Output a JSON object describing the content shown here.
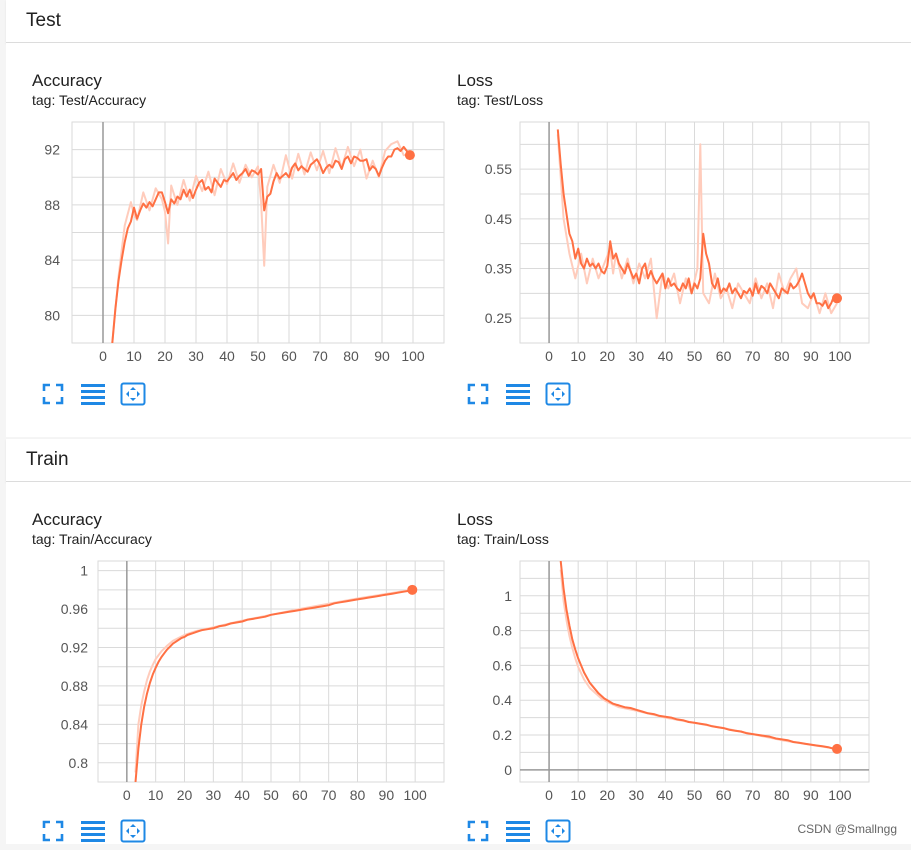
{
  "sections": {
    "test": {
      "title": "Test"
    },
    "train": {
      "title": "Train"
    }
  },
  "colors": {
    "accent": "#ff7043",
    "raw": "#ffccbc",
    "grid": "#dadada",
    "axis": "#999999",
    "button": "#1e88e5"
  },
  "icons": [
    "fullscreen-icon",
    "toggle-lines-icon",
    "fit-domain-icon"
  ],
  "watermark": "CSDN @Smallngg",
  "chart_data": [
    {
      "id": "test_acc",
      "type": "line",
      "title": "Accuracy",
      "tag": "tag: Test/Accuracy",
      "xlim": [
        -10,
        110
      ],
      "ylim": [
        78,
        94
      ],
      "xticks": [
        0,
        10,
        20,
        30,
        40,
        50,
        60,
        70,
        80,
        90,
        100
      ],
      "yticks": [
        80,
        84,
        88,
        92
      ],
      "series": [
        {
          "x": [
            3,
            4,
            5,
            6,
            7,
            8,
            9,
            10,
            11,
            12,
            13,
            14,
            15,
            16,
            17,
            18,
            19,
            20,
            21,
            22,
            23,
            24,
            25,
            26,
            27,
            28,
            29,
            30,
            31,
            32,
            33,
            34,
            35,
            36,
            37,
            38,
            39,
            40,
            41,
            42,
            43,
            44,
            45,
            46,
            47,
            48,
            49,
            50,
            51,
            52,
            53,
            54,
            55,
            56,
            57,
            58,
            59,
            60,
            61,
            62,
            63,
            64,
            65,
            66,
            67,
            68,
            69,
            70,
            71,
            72,
            73,
            74,
            75,
            76,
            77,
            78,
            79,
            80,
            81,
            82,
            83,
            84,
            85,
            86,
            87,
            88,
            89,
            90,
            91,
            92,
            93,
            94,
            95,
            96,
            97,
            98,
            99
          ],
          "y": [
            78.0,
            80.5,
            82.5,
            84.0,
            85.3,
            86.3,
            86.8,
            87.8,
            87.0,
            87.6,
            88.1,
            87.8,
            88.2,
            87.9,
            88.4,
            88.9,
            88.9,
            88.2,
            87.4,
            88.4,
            88.1,
            88.6,
            88.4,
            89.1,
            88.6,
            89.1,
            88.5,
            89.1,
            89.6,
            89.8,
            89.1,
            89.3,
            88.9,
            89.9,
            89.6,
            89.3,
            89.8,
            89.7,
            90.0,
            90.3,
            89.8,
            90.1,
            90.3,
            90.6,
            90.1,
            90.5,
            90.4,
            90.2,
            90.6,
            87.6,
            88.6,
            88.8,
            89.7,
            90.3,
            89.9,
            90.1,
            90.3,
            90.0,
            90.7,
            91.0,
            90.5,
            90.8,
            90.6,
            90.4,
            90.9,
            91.1,
            91.3,
            90.9,
            90.3,
            90.7,
            90.9,
            90.7,
            91.2,
            91.1,
            90.6,
            91.3,
            91.5,
            91.0,
            91.5,
            91.4,
            91.2,
            91.2,
            91.3,
            90.5,
            90.8,
            90.6,
            90.1,
            90.7,
            91.2,
            91.5,
            91.5,
            92.0,
            92.1,
            91.9,
            92.2,
            91.9,
            91.6
          ]
        }
      ],
      "raw": {
        "x": [
          3,
          5,
          7,
          9,
          10,
          11,
          13,
          15,
          17,
          19,
          20,
          21,
          22,
          24,
          26,
          28,
          30,
          32,
          34,
          36,
          38,
          40,
          42,
          44,
          46,
          48,
          50,
          51,
          52,
          53,
          55,
          57,
          59,
          61,
          63,
          65,
          67,
          69,
          71,
          73,
          75,
          77,
          79,
          81,
          83,
          85,
          87,
          89,
          91,
          93,
          95,
          97,
          99
        ],
        "y": [
          78.0,
          82.8,
          86.5,
          88.2,
          87.3,
          86.9,
          88.9,
          87.6,
          89.2,
          88.4,
          87.5,
          85.2,
          89.4,
          88.0,
          89.8,
          88.3,
          90.1,
          89.0,
          90.4,
          88.7,
          90.6,
          89.5,
          91.0,
          89.6,
          90.9,
          90.0,
          90.8,
          88.2,
          83.6,
          89.3,
          90.9,
          89.6,
          91.6,
          89.9,
          91.7,
          90.2,
          91.8,
          90.5,
          91.9,
          90.3,
          92.1,
          90.7,
          92.2,
          90.8,
          92.0,
          89.9,
          91.2,
          90.0,
          91.9,
          92.4,
          92.6,
          91.6,
          91.7
        ]
      }
    },
    {
      "id": "test_loss",
      "type": "line",
      "title": "Loss",
      "tag": "tag: Test/Loss",
      "xlim": [
        -10,
        110
      ],
      "ylim": [
        0.2,
        0.645
      ],
      "xticks": [
        0,
        10,
        20,
        30,
        40,
        50,
        60,
        70,
        80,
        90,
        100
      ],
      "yticks": [
        0.25,
        0.35,
        0.45,
        0.55
      ],
      "series": [
        {
          "x": [
            3,
            4,
            5,
            6,
            7,
            8,
            9,
            10,
            11,
            12,
            13,
            14,
            15,
            16,
            17,
            18,
            19,
            20,
            21,
            22,
            23,
            24,
            25,
            26,
            27,
            28,
            29,
            30,
            31,
            32,
            33,
            34,
            35,
            36,
            37,
            38,
            39,
            40,
            41,
            42,
            43,
            44,
            45,
            46,
            47,
            48,
            49,
            50,
            51,
            52,
            53,
            54,
            55,
            56,
            57,
            58,
            59,
            60,
            61,
            62,
            63,
            64,
            65,
            66,
            67,
            68,
            69,
            70,
            71,
            72,
            73,
            74,
            75,
            76,
            77,
            78,
            79,
            80,
            81,
            82,
            83,
            84,
            85,
            86,
            87,
            88,
            89,
            90,
            91,
            92,
            93,
            94,
            95,
            96,
            97,
            98,
            99
          ],
          "y": [
            0.63,
            0.56,
            0.5,
            0.46,
            0.42,
            0.405,
            0.37,
            0.39,
            0.36,
            0.35,
            0.37,
            0.355,
            0.36,
            0.35,
            0.36,
            0.345,
            0.34,
            0.355,
            0.405,
            0.37,
            0.38,
            0.36,
            0.35,
            0.34,
            0.36,
            0.345,
            0.33,
            0.34,
            0.32,
            0.35,
            0.36,
            0.33,
            0.345,
            0.33,
            0.32,
            0.33,
            0.34,
            0.31,
            0.33,
            0.315,
            0.32,
            0.31,
            0.305,
            0.32,
            0.31,
            0.33,
            0.3,
            0.32,
            0.31,
            0.33,
            0.42,
            0.38,
            0.36,
            0.32,
            0.31,
            0.33,
            0.3,
            0.31,
            0.305,
            0.32,
            0.3,
            0.31,
            0.3,
            0.29,
            0.305,
            0.3,
            0.31,
            0.295,
            0.32,
            0.3,
            0.315,
            0.31,
            0.3,
            0.32,
            0.31,
            0.3,
            0.29,
            0.31,
            0.305,
            0.3,
            0.32,
            0.31,
            0.315,
            0.325,
            0.34,
            0.32,
            0.3,
            0.29,
            0.3,
            0.28,
            0.28,
            0.275,
            0.285,
            0.27,
            0.28,
            0.295,
            0.29
          ]
        }
      ],
      "raw": {
        "x": [
          3,
          5,
          7,
          9,
          11,
          13,
          15,
          17,
          19,
          21,
          22,
          23,
          25,
          27,
          29,
          31,
          33,
          35,
          37,
          39,
          41,
          43,
          45,
          47,
          49,
          51,
          52,
          53,
          55,
          57,
          59,
          61,
          63,
          65,
          67,
          69,
          71,
          73,
          75,
          77,
          79,
          81,
          83,
          85,
          87,
          89,
          91,
          93,
          95,
          97,
          99
        ],
        "y": [
          0.62,
          0.45,
          0.38,
          0.33,
          0.38,
          0.32,
          0.37,
          0.33,
          0.36,
          0.39,
          0.34,
          0.38,
          0.33,
          0.37,
          0.32,
          0.36,
          0.33,
          0.37,
          0.25,
          0.34,
          0.31,
          0.34,
          0.28,
          0.33,
          0.3,
          0.35,
          0.6,
          0.3,
          0.28,
          0.34,
          0.29,
          0.31,
          0.27,
          0.32,
          0.3,
          0.28,
          0.33,
          0.29,
          0.32,
          0.27,
          0.34,
          0.3,
          0.33,
          0.35,
          0.28,
          0.27,
          0.3,
          0.26,
          0.3,
          0.26,
          0.28
        ]
      }
    },
    {
      "id": "train_acc",
      "type": "line",
      "title": "Accuracy",
      "tag": "tag: Train/Accuracy",
      "xlim": [
        -10,
        110
      ],
      "ylim": [
        0.78,
        1.01
      ],
      "xticks": [
        0,
        10,
        20,
        30,
        40,
        50,
        60,
        70,
        80,
        90,
        100
      ],
      "yticks": [
        0.8,
        0.84,
        0.88,
        0.92,
        0.96,
        1
      ],
      "series": [
        {
          "x": [
            3,
            4,
            5,
            6,
            7,
            8,
            9,
            10,
            11,
            12,
            13,
            14,
            15,
            16,
            17,
            18,
            19,
            20,
            21,
            22,
            23,
            24,
            25,
            26,
            28,
            30,
            32,
            34,
            36,
            38,
            40,
            42,
            44,
            46,
            48,
            50,
            52,
            54,
            56,
            58,
            60,
            62,
            64,
            66,
            68,
            70,
            72,
            74,
            76,
            78,
            80,
            82,
            84,
            86,
            88,
            90,
            92,
            94,
            96,
            98,
            99
          ],
          "y": [
            0.78,
            0.815,
            0.84,
            0.858,
            0.872,
            0.883,
            0.892,
            0.899,
            0.905,
            0.91,
            0.914,
            0.918,
            0.921,
            0.924,
            0.926,
            0.928,
            0.93,
            0.931,
            0.933,
            0.934,
            0.935,
            0.936,
            0.937,
            0.938,
            0.939,
            0.94,
            0.942,
            0.943,
            0.945,
            0.946,
            0.947,
            0.949,
            0.95,
            0.951,
            0.952,
            0.954,
            0.955,
            0.956,
            0.957,
            0.958,
            0.959,
            0.96,
            0.961,
            0.962,
            0.963,
            0.964,
            0.966,
            0.967,
            0.968,
            0.969,
            0.97,
            0.971,
            0.972,
            0.973,
            0.974,
            0.975,
            0.976,
            0.977,
            0.978,
            0.979,
            0.98
          ]
        }
      ],
      "raw": {
        "x": [
          3,
          4,
          5,
          6,
          7,
          8,
          9,
          10,
          12,
          14,
          16,
          18,
          20,
          24,
          30,
          40,
          60,
          80,
          99
        ],
        "y": [
          0.79,
          0.84,
          0.86,
          0.874,
          0.886,
          0.895,
          0.902,
          0.908,
          0.916,
          0.922,
          0.927,
          0.93,
          0.933,
          0.937,
          0.941,
          0.948,
          0.96,
          0.971,
          0.98
        ]
      }
    },
    {
      "id": "train_loss",
      "type": "line",
      "title": "Loss",
      "tag": "tag: Train/Loss",
      "xlim": [
        -10,
        110
      ],
      "ylim": [
        -0.07,
        1.2
      ],
      "xticks": [
        0,
        10,
        20,
        30,
        40,
        50,
        60,
        70,
        80,
        90,
        100
      ],
      "yticks": [
        0,
        0.2,
        0.4,
        0.6,
        0.8,
        1
      ],
      "series": [
        {
          "x": [
            4,
            5,
            6,
            7,
            8,
            9,
            10,
            11,
            12,
            13,
            14,
            15,
            16,
            17,
            18,
            19,
            20,
            21,
            22,
            23,
            24,
            26,
            28,
            30,
            32,
            34,
            36,
            38,
            40,
            42,
            44,
            46,
            48,
            50,
            52,
            54,
            56,
            58,
            60,
            62,
            64,
            66,
            68,
            70,
            72,
            74,
            76,
            78,
            80,
            82,
            84,
            86,
            88,
            90,
            92,
            94,
            96,
            98,
            99
          ],
          "y": [
            1.2,
            1.04,
            0.92,
            0.83,
            0.75,
            0.69,
            0.64,
            0.6,
            0.56,
            0.53,
            0.5,
            0.48,
            0.46,
            0.44,
            0.425,
            0.41,
            0.4,
            0.39,
            0.38,
            0.375,
            0.37,
            0.36,
            0.355,
            0.345,
            0.335,
            0.325,
            0.32,
            0.31,
            0.305,
            0.3,
            0.29,
            0.285,
            0.275,
            0.27,
            0.265,
            0.26,
            0.25,
            0.245,
            0.24,
            0.23,
            0.225,
            0.22,
            0.21,
            0.205,
            0.2,
            0.195,
            0.19,
            0.18,
            0.175,
            0.17,
            0.16,
            0.155,
            0.15,
            0.145,
            0.14,
            0.135,
            0.13,
            0.12,
            0.12
          ]
        }
      ],
      "raw": {
        "x": [
          4,
          5,
          6,
          7,
          8,
          9,
          10,
          12,
          14,
          16,
          18,
          20,
          24,
          30,
          40,
          60,
          80,
          99
        ],
        "y": [
          1.15,
          0.97,
          0.86,
          0.77,
          0.7,
          0.64,
          0.59,
          0.52,
          0.47,
          0.44,
          0.41,
          0.39,
          0.36,
          0.34,
          0.3,
          0.24,
          0.17,
          0.12
        ]
      }
    }
  ]
}
